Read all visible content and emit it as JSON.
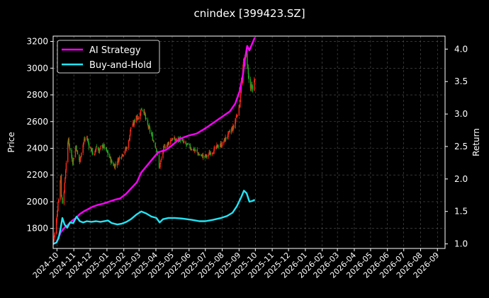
{
  "chart_data": {
    "type": "line",
    "title": "cnindex [399423.SZ]",
    "ylabel": "Price",
    "y2label": "Return",
    "background": "#000000",
    "grid": true,
    "legend_position": "upper-left",
    "x_ticks": [
      "2024-10",
      "2024-11",
      "2024-12",
      "2025-01",
      "2025-02",
      "2025-03",
      "2025-04",
      "2025-05",
      "2025-06",
      "2025-07",
      "2025-08",
      "2025-09",
      "2025-10",
      "2025-11",
      "2025-12",
      "2026-01",
      "2026-02",
      "2026-03",
      "2026-04",
      "2026-05",
      "2026-06",
      "2026-07",
      "2026-08",
      "2026-09"
    ],
    "x_range": [
      "2024-09-24",
      "2026-09-15"
    ],
    "ylim": [
      1650,
      3240
    ],
    "y_ticks": [
      1800,
      2000,
      2200,
      2400,
      2600,
      2800,
      3000,
      3200
    ],
    "y2lim": [
      0.93,
      4.2
    ],
    "y2_ticks": [
      "1.0",
      "1.5",
      "2.0",
      "2.5",
      "3.0",
      "3.5",
      "4.0"
    ],
    "up_color": "#ff2a1a",
    "down_color": "#1fa81f",
    "price": [
      [
        "2024-09-24",
        1700
      ],
      [
        "2024-09-27",
        1760
      ],
      [
        "2024-09-30",
        1860
      ],
      [
        "2024-10-08",
        2200
      ],
      [
        "2024-10-09",
        2050
      ],
      [
        "2024-10-11",
        2000
      ],
      [
        "2024-10-15",
        2120
      ],
      [
        "2024-10-18",
        2300
      ],
      [
        "2024-10-22",
        2470
      ],
      [
        "2024-10-25",
        2380
      ],
      [
        "2024-10-30",
        2300
      ],
      [
        "2024-11-05",
        2420
      ],
      [
        "2024-11-08",
        2350
      ],
      [
        "2024-11-12",
        2300
      ],
      [
        "2024-11-15",
        2380
      ],
      [
        "2024-11-20",
        2460
      ],
      [
        "2024-11-25",
        2480
      ],
      [
        "2024-11-29",
        2420
      ],
      [
        "2024-12-04",
        2380
      ],
      [
        "2024-12-09",
        2340
      ],
      [
        "2024-12-12",
        2420
      ],
      [
        "2024-12-17",
        2380
      ],
      [
        "2024-12-20",
        2400
      ],
      [
        "2024-12-25",
        2420
      ],
      [
        "2024-12-31",
        2380
      ],
      [
        "2025-01-06",
        2330
      ],
      [
        "2025-01-10",
        2290
      ],
      [
        "2025-01-15",
        2270
      ],
      [
        "2025-01-20",
        2300
      ],
      [
        "2025-01-24",
        2330
      ],
      [
        "2025-02-06",
        2400
      ],
      [
        "2025-02-10",
        2450
      ],
      [
        "2025-02-14",
        2560
      ],
      [
        "2025-02-19",
        2580
      ],
      [
        "2025-02-24",
        2650
      ],
      [
        "2025-02-28",
        2620
      ],
      [
        "2025-03-05",
        2700
      ],
      [
        "2025-03-10",
        2680
      ],
      [
        "2025-03-14",
        2600
      ],
      [
        "2025-03-19",
        2550
      ],
      [
        "2025-03-24",
        2500
      ],
      [
        "2025-03-28",
        2450
      ],
      [
        "2025-04-02",
        2400
      ],
      [
        "2025-04-07",
        2250
      ],
      [
        "2025-04-10",
        2300
      ],
      [
        "2025-04-15",
        2400
      ],
      [
        "2025-04-22",
        2430
      ],
      [
        "2025-04-30",
        2470
      ],
      [
        "2025-05-08",
        2460
      ],
      [
        "2025-05-15",
        2470
      ],
      [
        "2025-05-22",
        2440
      ],
      [
        "2025-05-29",
        2420
      ],
      [
        "2025-06-06",
        2400
      ],
      [
        "2025-06-13",
        2380
      ],
      [
        "2025-06-20",
        2350
      ],
      [
        "2025-06-27",
        2340
      ],
      [
        "2025-07-04",
        2340
      ],
      [
        "2025-07-11",
        2370
      ],
      [
        "2025-07-18",
        2390
      ],
      [
        "2025-07-25",
        2420
      ],
      [
        "2025-08-01",
        2430
      ],
      [
        "2025-08-08",
        2480
      ],
      [
        "2025-08-15",
        2520
      ],
      [
        "2025-08-22",
        2560
      ],
      [
        "2025-08-27",
        2640
      ],
      [
        "2025-09-02",
        2720
      ],
      [
        "2025-09-05",
        2880
      ],
      [
        "2025-09-10",
        3050
      ],
      [
        "2025-09-15",
        3100
      ],
      [
        "2025-09-18",
        2950
      ],
      [
        "2025-09-22",
        2820
      ],
      [
        "2025-09-25",
        2860
      ],
      [
        "2025-09-30",
        2900
      ]
    ],
    "series": [
      {
        "name": "AI Strategy",
        "color": "#ff00ff",
        "axis": "right",
        "points": [
          [
            "2024-09-24",
            1.0
          ],
          [
            "2024-09-30",
            1.02
          ],
          [
            "2024-10-08",
            1.18
          ],
          [
            "2024-10-15",
            1.25
          ],
          [
            "2024-10-22",
            1.3
          ],
          [
            "2024-10-29",
            1.36
          ],
          [
            "2024-11-05",
            1.4
          ],
          [
            "2024-11-12",
            1.46
          ],
          [
            "2024-11-19",
            1.5
          ],
          [
            "2024-11-26",
            1.53
          ],
          [
            "2024-12-05",
            1.57
          ],
          [
            "2024-12-15",
            1.6
          ],
          [
            "2024-12-25",
            1.62
          ],
          [
            "2025-01-05",
            1.65
          ],
          [
            "2025-01-15",
            1.68
          ],
          [
            "2025-01-25",
            1.7
          ],
          [
            "2025-02-05",
            1.77
          ],
          [
            "2025-02-15",
            1.86
          ],
          [
            "2025-02-25",
            1.95
          ],
          [
            "2025-03-05",
            2.1
          ],
          [
            "2025-03-15",
            2.2
          ],
          [
            "2025-03-25",
            2.3
          ],
          [
            "2025-04-05",
            2.41
          ],
          [
            "2025-04-20",
            2.45
          ],
          [
            "2025-05-01",
            2.52
          ],
          [
            "2025-05-15",
            2.62
          ],
          [
            "2025-06-01",
            2.67
          ],
          [
            "2025-06-15",
            2.7
          ],
          [
            "2025-07-01",
            2.78
          ],
          [
            "2025-07-15",
            2.86
          ],
          [
            "2025-08-01",
            2.96
          ],
          [
            "2025-08-15",
            3.04
          ],
          [
            "2025-08-25",
            3.16
          ],
          [
            "2025-09-02",
            3.35
          ],
          [
            "2025-09-08",
            3.6
          ],
          [
            "2025-09-12",
            3.85
          ],
          [
            "2025-09-16",
            4.05
          ],
          [
            "2025-09-20",
            3.98
          ],
          [
            "2025-09-25",
            4.08
          ],
          [
            "2025-09-30",
            4.18
          ]
        ]
      },
      {
        "name": "Buy-and-Hold",
        "color": "#22e5f5",
        "axis": "right",
        "points": [
          [
            "2024-09-24",
            1.0
          ],
          [
            "2024-09-30",
            1.02
          ],
          [
            "2024-10-04",
            1.09
          ],
          [
            "2024-10-08",
            1.25
          ],
          [
            "2024-10-11",
            1.4
          ],
          [
            "2024-10-15",
            1.3
          ],
          [
            "2024-10-20",
            1.25
          ],
          [
            "2024-10-25",
            1.33
          ],
          [
            "2024-10-31",
            1.32
          ],
          [
            "2024-11-06",
            1.42
          ],
          [
            "2024-11-12",
            1.35
          ],
          [
            "2024-11-18",
            1.33
          ],
          [
            "2024-11-25",
            1.35
          ],
          [
            "2024-12-03",
            1.34
          ],
          [
            "2024-12-12",
            1.35
          ],
          [
            "2024-12-20",
            1.34
          ],
          [
            "2025-01-03",
            1.36
          ],
          [
            "2025-01-10",
            1.32
          ],
          [
            "2025-01-20",
            1.3
          ],
          [
            "2025-01-28",
            1.31
          ],
          [
            "2025-02-06",
            1.34
          ],
          [
            "2025-02-14",
            1.38
          ],
          [
            "2025-02-24",
            1.45
          ],
          [
            "2025-03-05",
            1.5
          ],
          [
            "2025-03-14",
            1.47
          ],
          [
            "2025-03-24",
            1.42
          ],
          [
            "2025-04-02",
            1.4
          ],
          [
            "2025-04-08",
            1.33
          ],
          [
            "2025-04-14",
            1.38
          ],
          [
            "2025-04-24",
            1.4
          ],
          [
            "2025-05-06",
            1.4
          ],
          [
            "2025-05-20",
            1.39
          ],
          [
            "2025-06-06",
            1.37
          ],
          [
            "2025-06-20",
            1.35
          ],
          [
            "2025-07-01",
            1.35
          ],
          [
            "2025-07-15",
            1.37
          ],
          [
            "2025-07-30",
            1.4
          ],
          [
            "2025-08-10",
            1.43
          ],
          [
            "2025-08-20",
            1.48
          ],
          [
            "2025-08-28",
            1.58
          ],
          [
            "2025-09-05",
            1.72
          ],
          [
            "2025-09-10",
            1.82
          ],
          [
            "2025-09-15",
            1.78
          ],
          [
            "2025-09-20",
            1.65
          ],
          [
            "2025-09-25",
            1.66
          ],
          [
            "2025-09-30",
            1.68
          ]
        ]
      }
    ]
  }
}
